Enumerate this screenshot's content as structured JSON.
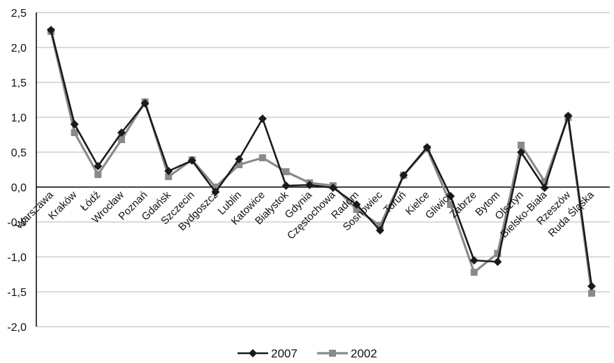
{
  "chart_data": {
    "type": "line",
    "title": "",
    "xlabel": "",
    "ylabel": "",
    "ylim": [
      -2.0,
      2.5
    ],
    "yticks": [
      "2,5",
      "2,0",
      "1,5",
      "1,0",
      "0,5",
      "0,0",
      "-0,5",
      "-1,0",
      "-1,5",
      "-2,0"
    ],
    "ytick_values": [
      2.5,
      2.0,
      1.5,
      1.0,
      0.5,
      0.0,
      -0.5,
      -1.0,
      -1.5,
      -2.0
    ],
    "grid": true,
    "legend": "bottom",
    "categories": [
      "Warszawa",
      "Kraków",
      "Łódź",
      "Wrocław",
      "Poznań",
      "Gdańsk",
      "Szczecin",
      "Bydgoszcz",
      "Lublin",
      "Katowice",
      "Białystok",
      "Gdynia",
      "Częstochowa",
      "Radom",
      "Sosnowiec",
      "Toruń",
      "Kielce",
      "Gliwice",
      "Zabrze",
      "Bytom",
      "Olsztyn",
      "Bielsko-Biała",
      "Rzeszów",
      "Ruda Śląska"
    ],
    "series": [
      {
        "name": "2007",
        "color": "#1a1a1a",
        "marker": "diamond",
        "values": [
          2.25,
          0.9,
          0.3,
          0.78,
          1.2,
          0.23,
          0.38,
          -0.07,
          0.4,
          0.98,
          0.02,
          0.03,
          -0.01,
          -0.25,
          -0.62,
          0.17,
          0.57,
          -0.13,
          -1.05,
          -1.07,
          0.5,
          -0.01,
          1.02,
          -1.42
        ]
      },
      {
        "name": "2002",
        "color": "#8a8a8a",
        "marker": "square",
        "values": [
          2.23,
          0.78,
          0.18,
          0.68,
          1.22,
          0.15,
          0.39,
          0.0,
          0.32,
          0.42,
          0.22,
          0.06,
          0.02,
          -0.32,
          -0.55,
          0.17,
          0.55,
          -0.25,
          -1.22,
          -0.95,
          0.6,
          0.08,
          1.0,
          -1.52
        ]
      }
    ]
  }
}
